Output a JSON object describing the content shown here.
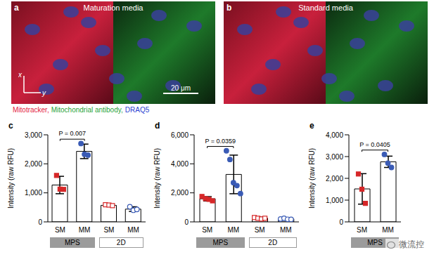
{
  "images": [
    {
      "panel": "a",
      "label": "Maturation media"
    },
    {
      "panel": "b",
      "label": "Standard media"
    }
  ],
  "axis_letters": [
    "x",
    "y"
  ],
  "scale_bar": "20 μm",
  "stain_legend": [
    {
      "text": "Mitotracker,",
      "color": "#e3223f"
    },
    {
      "text": "Mitochondrial antibody,",
      "color": "#27a33a"
    },
    {
      "text": "DRAQ5",
      "color": "#2b3fd1"
    }
  ],
  "watermark": "微流控",
  "chart_data": [
    {
      "panel": "c",
      "type": "bar",
      "y_label": "Intensity (raw RFU)",
      "categories": [
        "SM",
        "MM",
        "SM",
        "MM"
      ],
      "groups": [
        "MPS",
        "MPS",
        "2D",
        "2D"
      ],
      "values": [
        1270,
        2430,
        570,
        440
      ],
      "errors": [
        300,
        250,
        40,
        80
      ],
      "points": [
        [
          1600,
          1130,
          1120
        ],
        [
          2700,
          2330,
          2300
        ],
        [
          590,
          580,
          560
        ],
        [
          520,
          400,
          430
        ]
      ],
      "colors": [
        "#d62728",
        "#3a5bb5",
        "#d62728",
        "#3a5bb5"
      ],
      "ylim": [
        0,
        3000
      ],
      "yticks": [
        0,
        {
          "value": 1000,
          "label": "1,000"
        },
        {
          "value": 2000,
          "label": "2,000"
        },
        {
          "value": 3000,
          "label": "3,000"
        }
      ],
      "annotations": [
        {
          "from": 0,
          "to": 1,
          "text": "P = 0.007"
        }
      ]
    },
    {
      "panel": "d",
      "type": "bar",
      "y_label": "Intensity (raw RFU)",
      "categories": [
        "SM",
        "MM",
        "SM",
        "MM"
      ],
      "groups": [
        "MPS",
        "MPS",
        "2D",
        "2D"
      ],
      "values": [
        1590,
        3270,
        250,
        200
      ],
      "errors": [
        150,
        1330,
        80,
        40
      ],
      "points": [
        [
          1750,
          1600,
          1550,
          1450
        ],
        [
          4900,
          4300,
          2700,
          2500,
          1950
        ],
        [
          300,
          250,
          200,
          250
        ],
        [
          200,
          250,
          180,
          170
        ]
      ],
      "colors": [
        "#d62728",
        "#3a5bb5",
        "#d62728",
        "#3a5bb5"
      ],
      "ylim": [
        0,
        6000
      ],
      "yticks": [
        0,
        {
          "value": 2000,
          "label": "2,000"
        },
        {
          "value": 4000,
          "label": "4,000"
        },
        {
          "value": 6000,
          "label": "6,000"
        }
      ],
      "annotations": [
        {
          "from": 0,
          "to": 1,
          "text": "P = 0.0359"
        }
      ]
    },
    {
      "panel": "e",
      "type": "bar",
      "y_label": "Intensity (raw RFU)",
      "categories": [
        "SM",
        "MM"
      ],
      "groups": [
        "MPS",
        "MPS"
      ],
      "values": [
        1515,
        2760
      ],
      "errors": [
        700,
        260
      ],
      "points": [
        [
          2200,
          1500,
          850
        ],
        [
          3100,
          2700,
          2500
        ]
      ],
      "colors": [
        "#d62728",
        "#3a5bb5"
      ],
      "ylim": [
        0,
        4000
      ],
      "yticks": [
        0,
        {
          "value": 1000,
          "label": "1,000"
        },
        {
          "value": 2000,
          "label": "2,000"
        },
        {
          "value": 3000,
          "label": "3,000"
        },
        {
          "value": 4000,
          "label": "4,000"
        }
      ],
      "annotations": [
        {
          "from": 0,
          "to": 1,
          "text": "P = 0.0405"
        }
      ]
    }
  ]
}
